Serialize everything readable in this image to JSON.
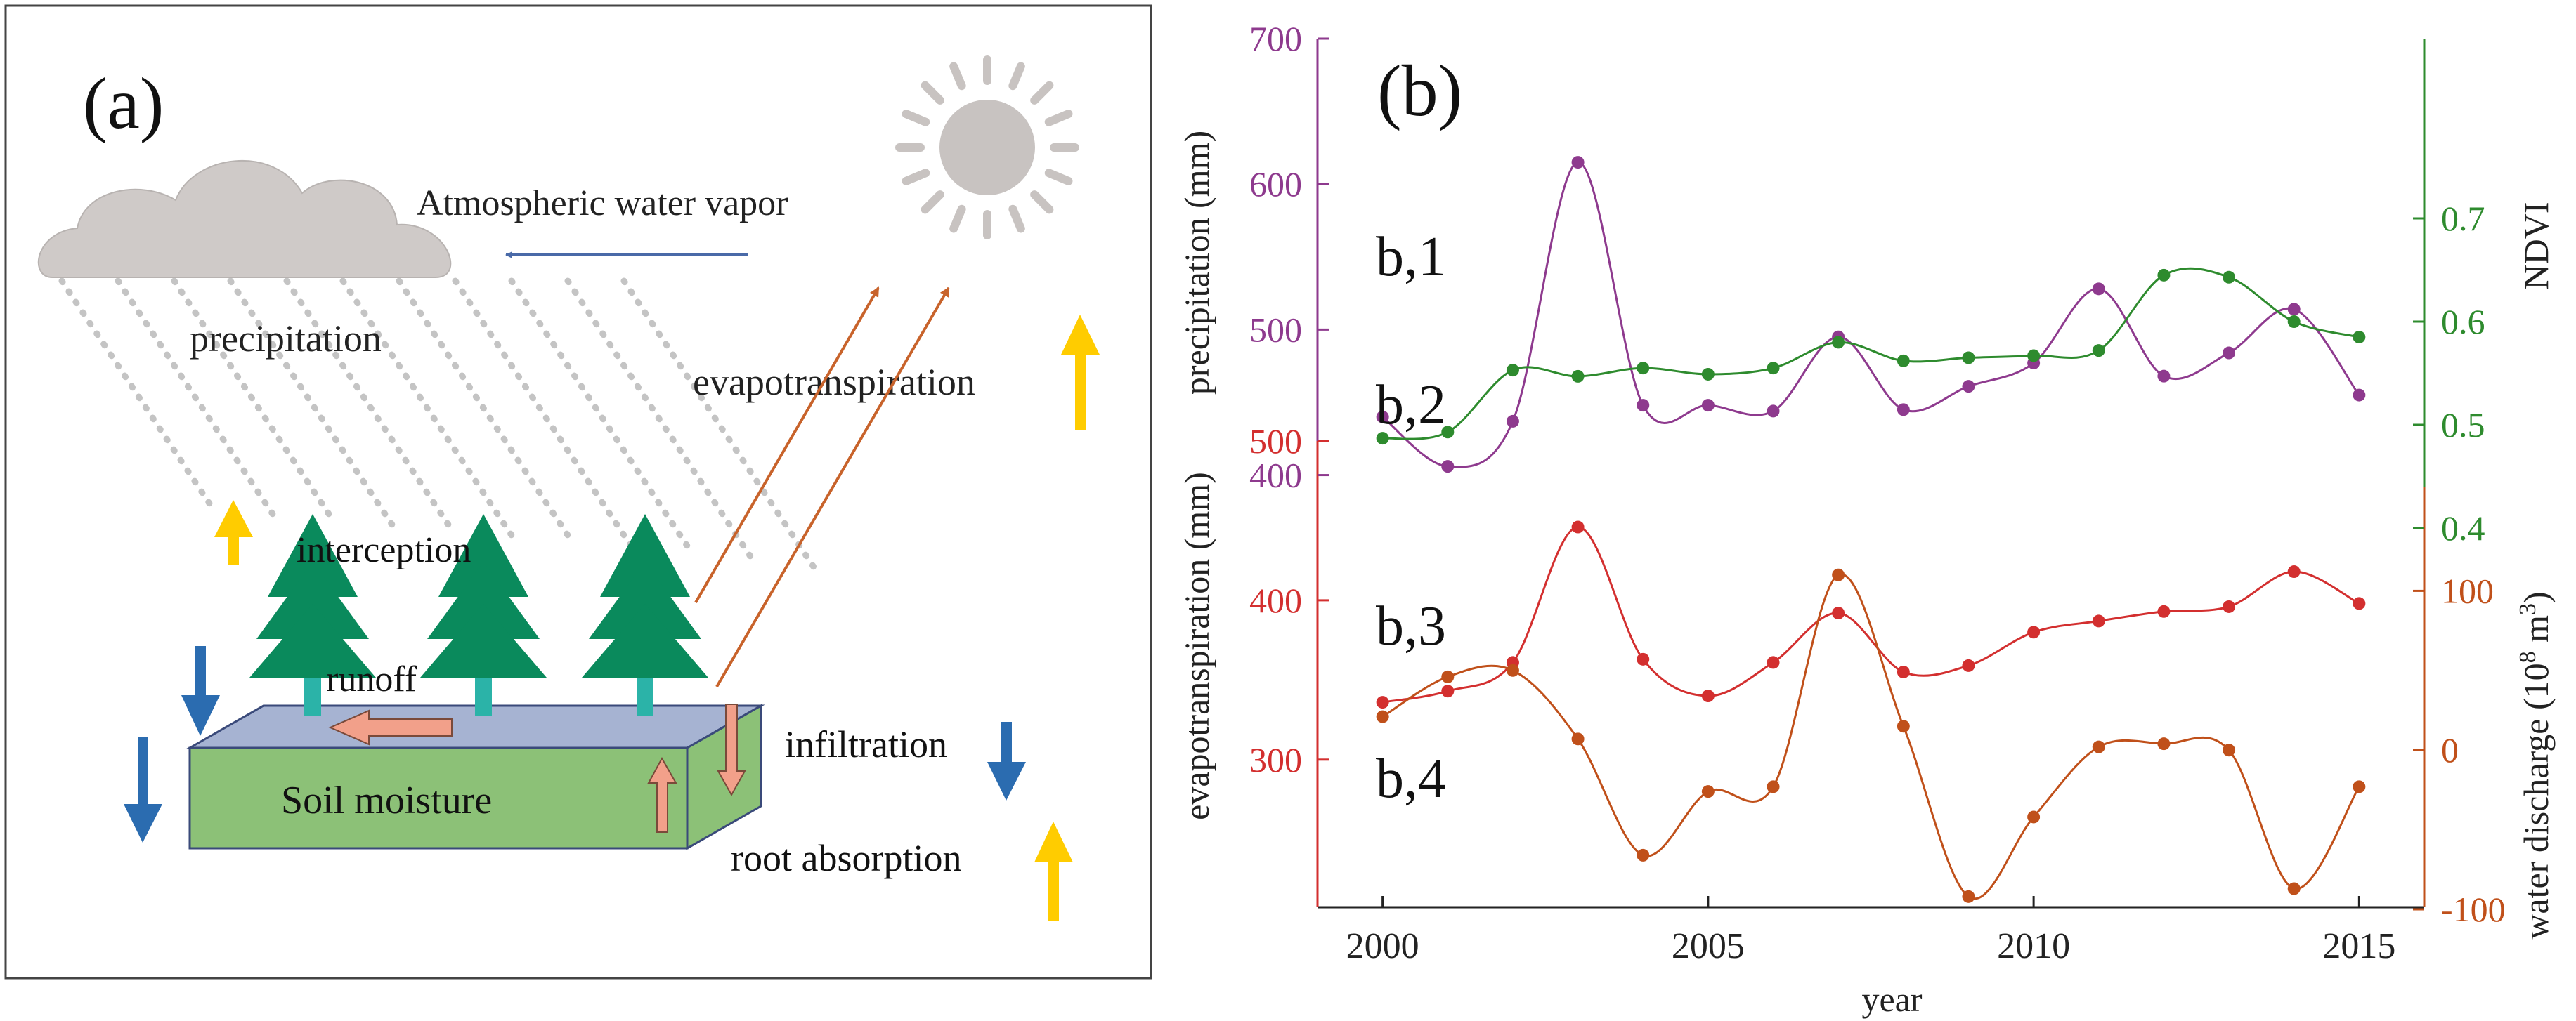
{
  "panel_a": {
    "label": "(a)",
    "labels": {
      "atmospheric": "Atmospheric water vapor",
      "precipitation": "precipitation",
      "evapotranspiration": "evapotranspiration",
      "interception": "interception",
      "runoff": "runoff",
      "infiltration": "infiltration",
      "soil_moisture": "Soil moisture",
      "root_absorption": "root absorption"
    },
    "colors": {
      "cloud": "#cfcac8",
      "sun": "#c8c3c1",
      "rain": "#c4c4c4",
      "tree": "#0a8a5c",
      "trunk": "#2bb3a8",
      "soil_front": "#8cc177",
      "soil_top": "#a6b3d2",
      "up_arrow": "#ffcc00",
      "down_arrow": "#2b6cb0",
      "evap_line": "#c8632b",
      "vapor_arrow": "#4a6aa8",
      "flow_arrow": "#f2a08a"
    }
  },
  "panel_b": {
    "label": "(b)",
    "series_labels": [
      "b,1",
      "b,2",
      "b,3",
      "b,4"
    ]
  },
  "chart_data": {
    "type": "line",
    "title": "",
    "xlabel": "year",
    "x": [
      2000,
      2001,
      2002,
      2003,
      2004,
      2005,
      2006,
      2007,
      2008,
      2009,
      2010,
      2011,
      2012,
      2013,
      2014,
      2015
    ],
    "xticks": [
      2000,
      2005,
      2010,
      2015
    ],
    "axes": [
      {
        "id": "precip",
        "label": "precipitation (mm)",
        "side": "left",
        "range": [
          380,
          700
        ],
        "ticks": [
          400,
          500,
          600,
          700
        ],
        "color": "#8e3a8e"
      },
      {
        "id": "et",
        "label": "evapotranspiration (mm)",
        "side": "left",
        "range": [
          210,
          500
        ],
        "ticks": [
          300,
          400,
          500
        ],
        "color": "#d32f2f"
      },
      {
        "id": "ndvi",
        "label": "NDVI",
        "side": "right",
        "range": [
          0.2,
          0.8
        ],
        "ticks": [
          0.4,
          0.5,
          0.6,
          0.7
        ],
        "color": "#2e8b2e"
      },
      {
        "id": "wd",
        "label_prefix": "water discharge (10",
        "label_sup": "8",
        "label_suffix": " m",
        "label_sup2": "3",
        "label_end": ")",
        "side": "right",
        "range": [
          -100,
          165
        ],
        "ticks": [
          -100,
          0,
          100
        ],
        "color": "#c0501a"
      }
    ],
    "series": [
      {
        "name": "b,1",
        "axis": "precip",
        "color": "#8e3a8e",
        "values": [
          440,
          406,
          437,
          615,
          448,
          448,
          444,
          495,
          445,
          461,
          477,
          528,
          468,
          484,
          514,
          455
        ]
      },
      {
        "name": "b,2",
        "axis": "ndvi",
        "color": "#2e8b2e",
        "values": [
          0.487,
          0.493,
          0.553,
          0.547,
          0.555,
          0.549,
          0.555,
          0.58,
          0.562,
          0.565,
          0.567,
          0.572,
          0.645,
          0.643,
          0.6,
          0.585
        ]
      },
      {
        "name": "b,3",
        "axis": "et",
        "color": "#d32f2f",
        "values": [
          336,
          343,
          361,
          446,
          363,
          340,
          361,
          392,
          355,
          359,
          380,
          387,
          393,
          396,
          418,
          398
        ]
      },
      {
        "name": "b,4",
        "axis": "wd",
        "color": "#c0501a",
        "values": [
          21,
          46,
          50,
          7,
          -66,
          -26,
          -23,
          110,
          15,
          -92,
          -42,
          2,
          4,
          0,
          -87,
          -23
        ]
      }
    ]
  }
}
